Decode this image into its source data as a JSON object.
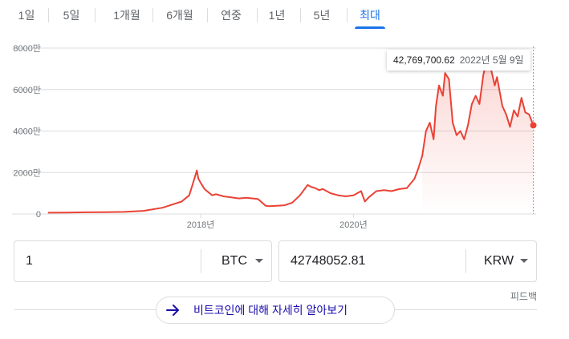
{
  "tabs": [
    {
      "label": "1일",
      "active": false
    },
    {
      "label": "5일",
      "active": false
    },
    {
      "label": "1개월",
      "active": false
    },
    {
      "label": "6개월",
      "active": false
    },
    {
      "label": "연중",
      "active": false
    },
    {
      "label": "1년",
      "active": false
    },
    {
      "label": "5년",
      "active": false
    },
    {
      "label": "최대",
      "active": true
    }
  ],
  "tooltip": {
    "price": "42,769,700.62",
    "date": "2022년 5월 9일"
  },
  "colors": {
    "line": "#e94235",
    "accent": "#1a73e8",
    "grid": "#dadce0"
  },
  "chart_data": {
    "type": "area",
    "ylim": [
      0,
      80000000
    ],
    "yticks": [
      {
        "label": "0",
        "value": 0
      },
      {
        "label": "2000만",
        "value": 20000000
      },
      {
        "label": "4000만",
        "value": 40000000
      },
      {
        "label": "6000만",
        "value": 60000000
      },
      {
        "label": "8000만",
        "value": 80000000
      }
    ],
    "xticks": [
      {
        "label": "2018년",
        "x": 2018.0
      },
      {
        "label": "2020년",
        "x": 2020.0
      }
    ],
    "xlim": [
      2015.95,
      2022.36
    ],
    "grid": true,
    "series": [
      {
        "x": [
          2016.0,
          2016.25,
          2016.5,
          2016.75,
          2017.0,
          2017.25,
          2017.5,
          2017.75,
          2017.85,
          2017.9,
          2017.95,
          2017.97,
          2018.0,
          2018.05,
          2018.1,
          2018.15,
          2018.2,
          2018.3,
          2018.4,
          2018.5,
          2018.6,
          2018.75,
          2018.85,
          2018.9,
          2019.0,
          2019.1,
          2019.2,
          2019.3,
          2019.4,
          2019.45,
          2019.5,
          2019.55,
          2019.6,
          2019.7,
          2019.8,
          2019.9,
          2020.0,
          2020.1,
          2020.15,
          2020.2,
          2020.3,
          2020.4,
          2020.5,
          2020.6,
          2020.7,
          2020.8,
          2020.85,
          2020.9,
          2020.95,
          2021.0,
          2021.05,
          2021.08,
          2021.12,
          2021.17,
          2021.2,
          2021.25,
          2021.3,
          2021.35,
          2021.4,
          2021.45,
          2021.5,
          2021.55,
          2021.6,
          2021.65,
          2021.7,
          2021.75,
          2021.8,
          2021.85,
          2021.88,
          2021.92,
          2021.95,
          2022.0,
          2022.05,
          2022.1,
          2022.15,
          2022.2,
          2022.25,
          2022.3,
          2022.355
        ],
        "values": [
          600000,
          700000,
          800000,
          900000,
          1000000,
          1500000,
          3000000,
          6000000,
          9000000,
          15000000,
          21000000,
          17000000,
          15000000,
          12000000,
          10500000,
          9000000,
          9500000,
          8500000,
          8000000,
          7500000,
          7800000,
          7200000,
          4000000,
          3800000,
          4000000,
          4200000,
          5500000,
          9000000,
          14000000,
          13000000,
          12500000,
          11500000,
          12000000,
          10000000,
          9000000,
          8500000,
          9000000,
          11000000,
          6000000,
          8000000,
          11000000,
          11500000,
          11000000,
          12000000,
          12500000,
          17000000,
          22000000,
          28000000,
          40000000,
          44000000,
          36000000,
          52000000,
          62000000,
          57000000,
          68000000,
          65000000,
          44000000,
          38000000,
          40000000,
          36000000,
          43000000,
          53000000,
          57000000,
          53000000,
          67000000,
          75000000,
          70000000,
          62000000,
          66000000,
          58000000,
          52000000,
          48000000,
          42000000,
          50000000,
          47000000,
          56000000,
          49000000,
          48000000,
          42769700
        ]
      }
    ]
  },
  "converter": {
    "from_value": "1",
    "from_unit": "BTC",
    "to_value": "42748052.81",
    "to_unit": "KRW"
  },
  "feedback": "피드백",
  "learn_more": "비트코인에 대해 자세히 알아보기"
}
